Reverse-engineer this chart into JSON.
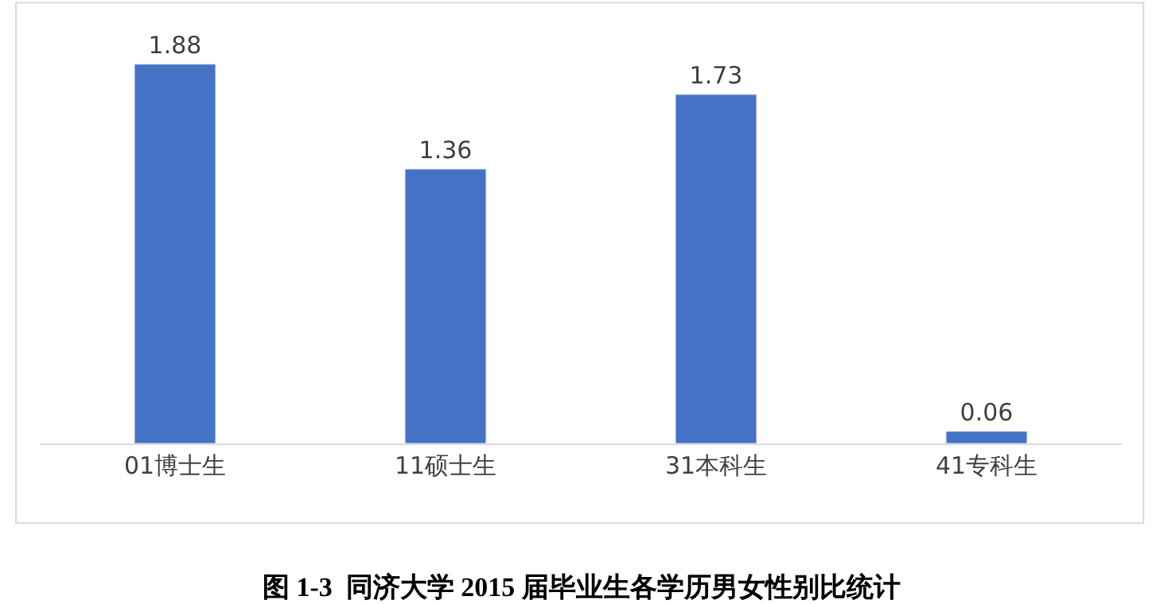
{
  "chart_data": {
    "type": "bar",
    "title": "图 1-3  同济大学 2015 届毕业生各学历男女性别比统计",
    "categories": [
      "01博士生",
      "11硕士生",
      "31本科生",
      "41专科生"
    ],
    "values": [
      1.88,
      1.36,
      1.73,
      0.06
    ],
    "color": "#4472c4",
    "data_labels": true,
    "tick_labels": "x"
  }
}
